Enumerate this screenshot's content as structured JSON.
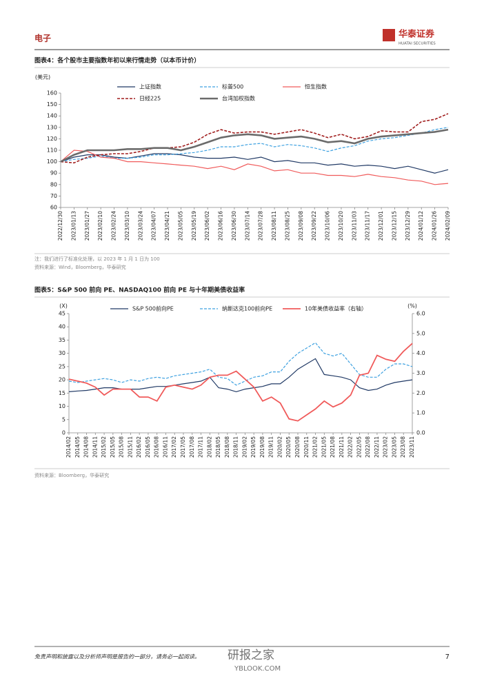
{
  "header": {
    "section": "电子",
    "logo_cn": "华泰证券",
    "logo_en": "HUATAI SECURITIES"
  },
  "chart_data": [
    {
      "type": "line",
      "title": "图表4：各个股市主要指数年初以来行情走势（以本币计价）",
      "y_label": "(美元)",
      "categories": [
        "2022/12/30",
        "2023/01/13",
        "2023/01/27",
        "2023/02/10",
        "2023/02/24",
        "2023/03/10",
        "2023/03/24",
        "2023/04/07",
        "2023/04/21",
        "2023/05/05",
        "2023/05/19",
        "2023/06/02",
        "2023/06/16",
        "2023/06/30",
        "2023/07/14",
        "2023/07/28",
        "2023/08/11",
        "2023/08/25",
        "2023/09/08",
        "2023/09/22",
        "2023/10/06",
        "2023/10/20",
        "2023/11/03",
        "2023/11/17",
        "2023/12/01",
        "2023/12/15",
        "2023/12/29",
        "2024/01/12",
        "2024/01/26",
        "2024/02/09"
      ],
      "series": [
        {
          "name": "上证指数",
          "color": "#1f3864",
          "dash": "solid",
          "width": 1.2,
          "values": [
            100,
            104,
            106,
            106,
            104,
            103,
            105,
            107,
            107,
            106,
            104,
            103,
            103,
            104,
            102,
            104,
            100,
            101,
            99,
            99,
            97,
            98,
            96,
            97,
            96,
            94,
            96,
            93,
            90,
            93
          ]
        },
        {
          "name": "标普500",
          "color": "#3ca0e0",
          "dash": "dashed",
          "width": 1.2,
          "values": [
            100,
            102,
            103,
            105,
            103,
            103,
            104,
            106,
            106,
            107,
            108,
            110,
            113,
            113,
            115,
            116,
            113,
            115,
            114,
            112,
            109,
            112,
            114,
            118,
            120,
            121,
            123,
            125,
            128,
            130
          ]
        },
        {
          "name": "恒生指数",
          "color": "#f05a5a",
          "dash": "solid",
          "width": 1.2,
          "values": [
            100,
            110,
            109,
            104,
            103,
            100,
            100,
            99,
            98,
            97,
            96,
            94,
            96,
            93,
            98,
            96,
            92,
            93,
            90,
            90,
            88,
            88,
            87,
            89,
            87,
            86,
            84,
            83,
            80,
            81
          ]
        },
        {
          "name": "日经225",
          "color": "#a01c1c",
          "dash": "dashed",
          "width": 1.6,
          "values": [
            100,
            99,
            104,
            106,
            107,
            107,
            109,
            112,
            112,
            113,
            117,
            124,
            128,
            125,
            126,
            126,
            124,
            126,
            128,
            125,
            121,
            124,
            120,
            122,
            127,
            126,
            126,
            135,
            137,
            142
          ]
        },
        {
          "name": "台湾加权指数",
          "color": "#6b6b6b",
          "dash": "solid",
          "width": 2.6,
          "values": [
            100,
            106,
            110,
            110,
            110,
            111,
            111,
            112,
            112,
            110,
            113,
            117,
            121,
            123,
            124,
            123,
            120,
            121,
            122,
            120,
            117,
            118,
            116,
            120,
            122,
            123,
            124,
            125,
            126,
            128
          ]
        }
      ],
      "ylim": [
        60,
        160
      ],
      "yticks": [
        60,
        70,
        80,
        90,
        100,
        110,
        120,
        130,
        140,
        150,
        160
      ],
      "grid": false
    },
    {
      "type": "line",
      "title": "图表5：S&P 500 前向 PE、NASDAQ100 前向 PE 与十年期美债收益率",
      "y_label": "(X)",
      "y2_label": "(%)",
      "categories": [
        "2014/02",
        "2014/05",
        "2014/08",
        "2014/11",
        "2015/02",
        "2015/05",
        "2015/08",
        "2015/11",
        "2016/02",
        "2016/05",
        "2016/08",
        "2016/11",
        "2017/02",
        "2017/05",
        "2017/08",
        "2017/11",
        "2018/02",
        "2018/05",
        "2018/08",
        "2018/11",
        "2019/02",
        "2019/05",
        "2019/08",
        "2019/11",
        "2020/02",
        "2020/05",
        "2020/08",
        "2020/11",
        "2021/02",
        "2021/05",
        "2021/08",
        "2021/11",
        "2022/02",
        "2022/05",
        "2022/08",
        "2022/11",
        "2023/02",
        "2023/05",
        "2023/08",
        "2023/11"
      ],
      "series": [
        {
          "name": "S&P 500前向PE",
          "color": "#1f3864",
          "dash": "solid",
          "width": 1.2,
          "values": [
            15.5,
            15.8,
            16,
            16.5,
            17,
            17,
            16.5,
            16.5,
            16.5,
            17,
            17.5,
            17.5,
            18,
            18.5,
            19,
            19.5,
            21,
            17,
            16.5,
            15.5,
            16.5,
            17,
            17.5,
            18.5,
            18.5,
            21,
            24,
            26,
            28,
            22,
            21.5,
            21,
            20,
            17,
            16,
            16.5,
            18,
            19,
            19.5,
            20
          ]
        },
        {
          "name": "纳斯达克100前向PE",
          "color": "#3ca0e0",
          "dash": "dashed",
          "width": 1.2,
          "values": [
            19.5,
            19,
            19.5,
            20,
            20.5,
            20,
            19,
            20,
            19.5,
            20.5,
            21,
            20.5,
            21.5,
            22,
            22.5,
            23,
            24,
            21,
            20.5,
            18,
            19.5,
            21,
            21.5,
            23,
            23,
            27,
            30,
            32,
            34,
            30,
            29,
            30,
            26,
            22,
            21,
            21,
            24,
            26,
            26,
            25
          ]
        },
        {
          "name": "10年美债收益率（右轴）",
          "color": "#f05a5a",
          "dash": "solid",
          "width": 1.8,
          "axis": "y2",
          "values": [
            2.7,
            2.6,
            2.5,
            2.3,
            1.9,
            2.2,
            2.2,
            2.2,
            1.8,
            1.8,
            1.6,
            2.3,
            2.4,
            2.3,
            2.2,
            2.4,
            2.8,
            2.9,
            2.9,
            3.1,
            2.7,
            2.3,
            1.6,
            1.8,
            1.5,
            0.7,
            0.6,
            0.9,
            1.2,
            1.6,
            1.3,
            1.5,
            1.9,
            2.9,
            3.0,
            3.9,
            3.7,
            3.6,
            4.1,
            4.5
          ]
        }
      ],
      "ylim": [
        0,
        45
      ],
      "yticks": [
        0,
        5,
        10,
        15,
        20,
        25,
        30,
        35,
        40,
        45
      ],
      "y2lim": [
        0,
        6
      ],
      "y2ticks": [
        {
          "value": 0,
          "label": "0.0"
        },
        {
          "value": 1,
          "label": "1.0"
        },
        {
          "value": 2,
          "label": "2.0"
        },
        {
          "value": 3,
          "label": "3.0"
        },
        {
          "value": 4,
          "label": "4.0"
        },
        {
          "value": 5,
          "label": "5.0"
        },
        {
          "value": 6,
          "label": "6.0"
        }
      ],
      "grid": false
    }
  ],
  "figure_notes": [
    [
      "注：我们进行了标准化处理，以 2023 年 1 月 1 日为 100",
      "资料来源：Wind，Bloomberg，华泰研究"
    ],
    [
      "资料来源：Bloomberg，华泰研究"
    ]
  ],
  "watermark": {
    "cn": "研报之家",
    "en": "YBLOOK.COM"
  },
  "footer": {
    "disclaimer": "免责声明和披露以及分析师声明是报告的一部分，请务必一起阅读。",
    "page": 7
  }
}
